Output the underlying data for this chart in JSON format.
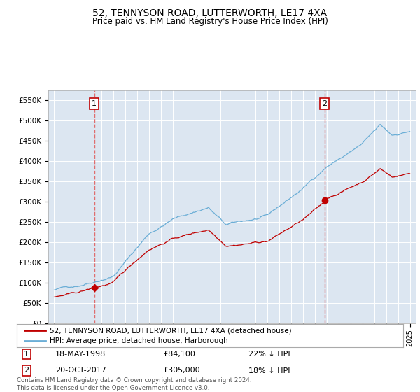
{
  "title": "52, TENNYSON ROAD, LUTTERWORTH, LE17 4XA",
  "subtitle": "Price paid vs. HM Land Registry's House Price Index (HPI)",
  "legend_line1": "52, TENNYSON ROAD, LUTTERWORTH, LE17 4XA (detached house)",
  "legend_line2": "HPI: Average price, detached house, Harborough",
  "annotation1_date": "18-MAY-1998",
  "annotation1_price": "£84,100",
  "annotation1_hpi": "22% ↓ HPI",
  "annotation1_year": 1998.38,
  "annotation1_value": 84100,
  "annotation2_date": "20-OCT-2017",
  "annotation2_price": "£305,000",
  "annotation2_hpi": "18% ↓ HPI",
  "annotation2_year": 2017.8,
  "annotation2_value": 305000,
  "hpi_color": "#6baed6",
  "price_color": "#c00000",
  "dashed_color": "#e06060",
  "plot_bg": "#dce6f1",
  "ylim": [
    0,
    575000
  ],
  "yticks": [
    0,
    50000,
    100000,
    150000,
    200000,
    250000,
    300000,
    350000,
    400000,
    450000,
    500000,
    550000
  ],
  "xlim_left": 1994.5,
  "xlim_right": 2025.5,
  "footer": "Contains HM Land Registry data © Crown copyright and database right 2024.\nThis data is licensed under the Open Government Licence v3.0."
}
